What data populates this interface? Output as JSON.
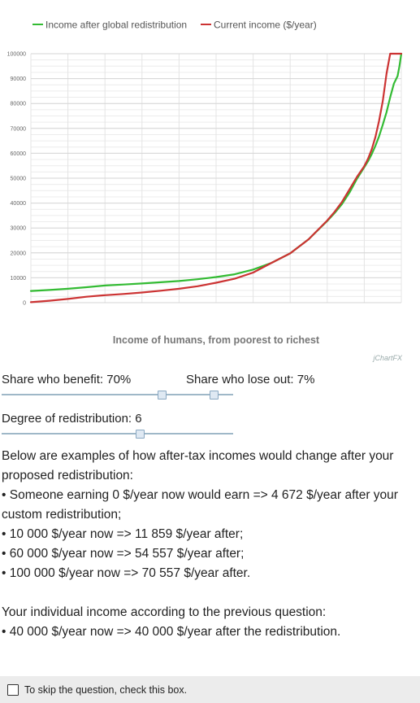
{
  "chart_data": {
    "type": "line",
    "title": "",
    "xlabel": "Income of humans, from poorest to richest",
    "ylabel": "",
    "ylim": [
      0,
      100000
    ],
    "yticks": [
      "0",
      "10000",
      "20000",
      "30000",
      "40000",
      "50000",
      "60000",
      "70000",
      "80000",
      "90000",
      "100000"
    ],
    "grid": true,
    "legend": "top",
    "series": [
      {
        "name": "Income after global redistribution",
        "color": "#33bb33",
        "x": [
          0,
          5,
          10,
          15,
          20,
          25,
          30,
          35,
          40,
          45,
          50,
          55,
          60,
          65,
          70,
          75,
          80,
          82,
          84,
          86,
          88,
          90,
          91,
          92,
          93,
          94,
          95,
          96,
          97,
          98,
          99,
          99.5,
          100
        ],
        "values": [
          4700,
          5100,
          5600,
          6200,
          6900,
          7300,
          7700,
          8200,
          8700,
          9400,
          10300,
          11400,
          13300,
          16000,
          19800,
          25500,
          32800,
          36000,
          39600,
          44200,
          49700,
          54400,
          56800,
          59600,
          63000,
          66800,
          71500,
          76500,
          82500,
          88000,
          91000,
          95000,
          100000
        ]
      },
      {
        "name": "Current income ($/year)",
        "color": "#cc3333",
        "x": [
          0,
          5,
          10,
          15,
          20,
          25,
          30,
          35,
          40,
          45,
          50,
          55,
          60,
          65,
          70,
          75,
          80,
          82,
          84,
          86,
          88,
          90,
          91,
          92,
          93,
          94,
          95,
          96,
          97,
          98,
          99,
          99.5,
          100
        ],
        "values": [
          200,
          800,
          1500,
          2400,
          3000,
          3500,
          4100,
          4800,
          5600,
          6600,
          8000,
          9600,
          12100,
          16000,
          19800,
          25500,
          33000,
          36500,
          40500,
          45500,
          50500,
          54800,
          57800,
          61500,
          66500,
          73000,
          81000,
          92000,
          100000,
          100000,
          100000,
          100000,
          100000
        ]
      }
    ]
  },
  "chart": {
    "brand": "jChartFX"
  },
  "sliders": {
    "benefit_label": "Share who benefit: 70%",
    "lose_label": "Share who lose out: 7%",
    "degree_label": "Degree of redistribution: 6",
    "share_benefit_percent": 70,
    "share_lose_percent": 7,
    "degree": 6
  },
  "examples": {
    "intro": "Below are examples of how after-tax incomes would change after your proposed redistribution:",
    "line1": "• Someone earning 0 $/year now would earn => 4 672  $/year after your custom redistribution;",
    "line2": "• 10 000 $/year now => 11 859 $/year after;",
    "line3": "• 60 000 $/year now => 54 557 $/year after;",
    "line4": "• 100 000 $/year now => 70 557 $/year after.",
    "individual_intro": "Your individual income according to the previous question:",
    "individual_line": "• 40 000 $/year now => 40 000 $/year after the redistribution."
  },
  "skip": {
    "label": "To skip the question, check this box.",
    "checked": false
  }
}
